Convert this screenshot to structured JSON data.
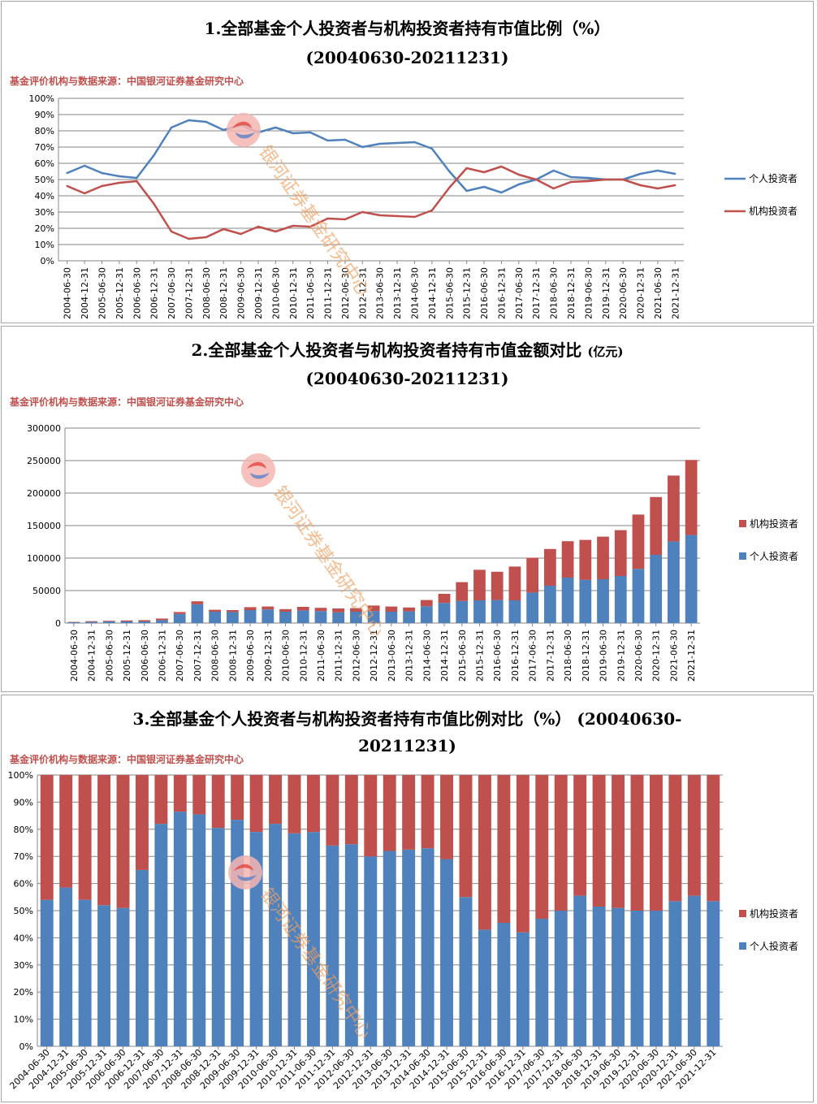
{
  "source_label": "基金评价机构与数据来源：中国银河证券基金研究中心",
  "watermark_text": "银河证券基金研究中心",
  "colors": {
    "individual": "#4f81bd",
    "institution": "#c0504d",
    "source_text": "#c0504d"
  },
  "panel1": {
    "title_line1": "1.全部基金个人投资者与机构投资者持有市值比例（%）",
    "title_line2": "(20040630-20211231)"
  },
  "panel2": {
    "title_line1": "2.全部基金个人投资者与机构投资者持有市值金额对比",
    "title_suffix": "(亿元)",
    "title_line2": "(20040630-20211231)"
  },
  "panel3": {
    "title_line1": "3.全部基金个人投资者与机构投资者持有市值比例对比（%）  (20040630-",
    "title_line2": "20211231)"
  },
  "chart_data": [
    {
      "type": "line",
      "categories": [
        "2004-06-30",
        "2004-12-31",
        "2005-06-30",
        "2005-12-31",
        "2006-06-30",
        "2006-12-31",
        "2007-06-30",
        "2007-12-31",
        "2008-06-30",
        "2008-12-31",
        "2009-06-30",
        "2009-12-31",
        "2010-06-30",
        "2010-12-31",
        "2011-06-30",
        "2011-12-31",
        "2012-06-30",
        "2012-12-31",
        "2013-06-30",
        "2013-12-31",
        "2014-06-30",
        "2014-12-31",
        "2015-06-30",
        "2015-12-31",
        "2016-06-30",
        "2016-12-31",
        "2017-06-30",
        "2017-12-31",
        "2018-06-30",
        "2018-12-31",
        "2019-06-30",
        "2019-12-31",
        "2020-06-30",
        "2020-12-31",
        "2021-06-30",
        "2021-12-31"
      ],
      "y_ticks": [
        "0%",
        "10%",
        "20%",
        "30%",
        "40%",
        "50%",
        "60%",
        "70%",
        "80%",
        "90%",
        "100%"
      ],
      "ylim": [
        0,
        100
      ],
      "grid": true,
      "legend_position": "right",
      "series": [
        {
          "name": "个人投资者",
          "color": "#4f81bd",
          "values": [
            54,
            58.5,
            54,
            52,
            51,
            65,
            82,
            86.5,
            85.5,
            80.5,
            83.5,
            79,
            82,
            78.5,
            79,
            74,
            74.5,
            70,
            72,
            72.5,
            73,
            69,
            55,
            43,
            45.5,
            42,
            47,
            50,
            55.5,
            51.5,
            51,
            50,
            50,
            53.5,
            55.5,
            53.5
          ]
        },
        {
          "name": "机构投资者",
          "color": "#c0504d",
          "values": [
            46,
            41.5,
            46,
            48,
            49,
            35,
            18,
            13.5,
            14.5,
            19.5,
            16.5,
            21,
            18,
            21.5,
            21,
            26,
            25.5,
            30,
            28,
            27.5,
            27,
            31,
            45,
            57,
            54.5,
            58,
            53,
            50,
            44.5,
            48.5,
            49,
            50,
            50,
            46.5,
            44.5,
            46.5
          ]
        }
      ]
    },
    {
      "type": "bar",
      "stacked": true,
      "categories": [
        "2004-06-30",
        "2004-12-31",
        "2005-06-30",
        "2005-12-31",
        "2006-06-30",
        "2006-12-31",
        "2007-06-30",
        "2007-12-31",
        "2008-06-30",
        "2008-12-31",
        "2009-06-30",
        "2009-12-31",
        "2010-06-30",
        "2010-12-31",
        "2011-06-30",
        "2011-12-31",
        "2012-06-30",
        "2012-12-31",
        "2013-06-30",
        "2013-12-31",
        "2014-06-30",
        "2014-12-31",
        "2015-06-30",
        "2015-12-31",
        "2016-06-30",
        "2016-12-31",
        "2017-06-30",
        "2017-12-31",
        "2018-06-30",
        "2018-12-31",
        "2019-06-30",
        "2019-12-31",
        "2020-06-30",
        "2020-12-31",
        "2021-06-30",
        "2021-12-31"
      ],
      "y_ticks": [
        "0",
        "50000",
        "100000",
        "150000",
        "200000",
        "250000",
        "300000"
      ],
      "ylim": [
        0,
        300000
      ],
      "grid": true,
      "legend_position": "right",
      "series": [
        {
          "name": "个人投资者",
          "color": "#4f81bd",
          "values": [
            1500,
            2000,
            2500,
            2500,
            2500,
            4500,
            14000,
            29000,
            17500,
            17000,
            20000,
            21000,
            17500,
            19500,
            18500,
            16500,
            17500,
            18500,
            17500,
            18000,
            26000,
            31000,
            34000,
            35000,
            35500,
            35000,
            47000,
            57500,
            70000,
            66500,
            67500,
            72500,
            83500,
            105000,
            125500,
            135500
          ]
        },
        {
          "name": "机构投资者",
          "color": "#c0504d",
          "values": [
            500,
            1000,
            1000,
            1500,
            2000,
            2500,
            3000,
            4500,
            3000,
            3000,
            4500,
            4500,
            4000,
            5500,
            5000,
            6000,
            5500,
            8500,
            8000,
            6000,
            9500,
            14000,
            29000,
            47000,
            43500,
            52000,
            53500,
            56500,
            56000,
            61500,
            65500,
            70500,
            83500,
            89000,
            101500,
            115500
          ]
        }
      ]
    },
    {
      "type": "bar",
      "stacked": true,
      "normalized": true,
      "categories": [
        "2004-06-30",
        "2004-12-31",
        "2005-06-30",
        "2005-12-31",
        "2006-06-30",
        "2006-12-31",
        "2007-06-30",
        "2007-12-31",
        "2008-06-30",
        "2008-12-31",
        "2009-06-30",
        "2009-12-31",
        "2010-06-30",
        "2010-12-31",
        "2011-06-30",
        "2011-12-31",
        "2012-06-30",
        "2012-12-31",
        "2013-06-30",
        "2013-12-31",
        "2014-06-30",
        "2014-12-31",
        "2015-06-30",
        "2015-12-31",
        "2016-06-30",
        "2016-12-31",
        "2017-06-30",
        "2017-12-31",
        "2018-06-30",
        "2018-12-31",
        "2019-06-30",
        "2019-12-31",
        "2020-06-30",
        "2020-12-31",
        "2021-06-30",
        "2021-12-31"
      ],
      "y_ticks": [
        "0%",
        "10%",
        "20%",
        "30%",
        "40%",
        "50%",
        "60%",
        "70%",
        "80%",
        "90%",
        "100%"
      ],
      "ylim": [
        0,
        100
      ],
      "grid": true,
      "legend_position": "right",
      "series": [
        {
          "name": "个人投资者",
          "color": "#4f81bd",
          "values": [
            54,
            58.5,
            54,
            52,
            51,
            65,
            82,
            86.5,
            85.5,
            80.5,
            83.5,
            79,
            82,
            78.5,
            79,
            74,
            74.5,
            70,
            72,
            72.5,
            73,
            69,
            55,
            43,
            45.5,
            42,
            47,
            50,
            55.5,
            51.5,
            51,
            50,
            50,
            53.5,
            55.5,
            53.5
          ]
        },
        {
          "name": "机构投资者",
          "color": "#c0504d",
          "values": [
            46,
            41.5,
            46,
            48,
            49,
            35,
            18,
            13.5,
            14.5,
            19.5,
            16.5,
            21,
            18,
            21.5,
            21,
            26,
            25.5,
            30,
            28,
            27.5,
            27,
            31,
            45,
            57,
            54.5,
            58,
            53,
            50,
            44.5,
            48.5,
            49,
            50,
            50,
            46.5,
            44.5,
            46.5
          ]
        }
      ]
    }
  ]
}
